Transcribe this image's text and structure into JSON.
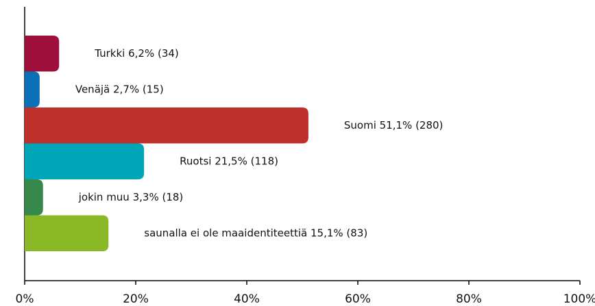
{
  "chart_data": {
    "type": "hbar",
    "values": [
      6.2,
      2.7,
      51.1,
      21.5,
      3.3,
      15.1
    ],
    "value_labels": [
      "Turkki 6,2% (34)",
      "Venäjä 2,7% (15)",
      "Suomi 51,1% (280)",
      "Ruotsi 21,5% (118)",
      "jokin muu 3,3% (18)",
      "saunalla ei ole maaidentiteettiä 15,1% (83)"
    ],
    "colors": [
      "#9e0f3c",
      "#0b6fb5",
      "#c0302a",
      "#00a5b8",
      "#37884b",
      "#8bb826"
    ],
    "xlim": [
      0,
      100
    ],
    "xticks": [
      {
        "value": 0,
        "label": "0%"
      },
      {
        "value": 20,
        "label": "20%"
      },
      {
        "value": 40,
        "label": "40%"
      },
      {
        "value": 60,
        "label": "60%"
      },
      {
        "value": 80,
        "label": "80%"
      },
      {
        "value": 100,
        "label": "100%"
      }
    ]
  }
}
